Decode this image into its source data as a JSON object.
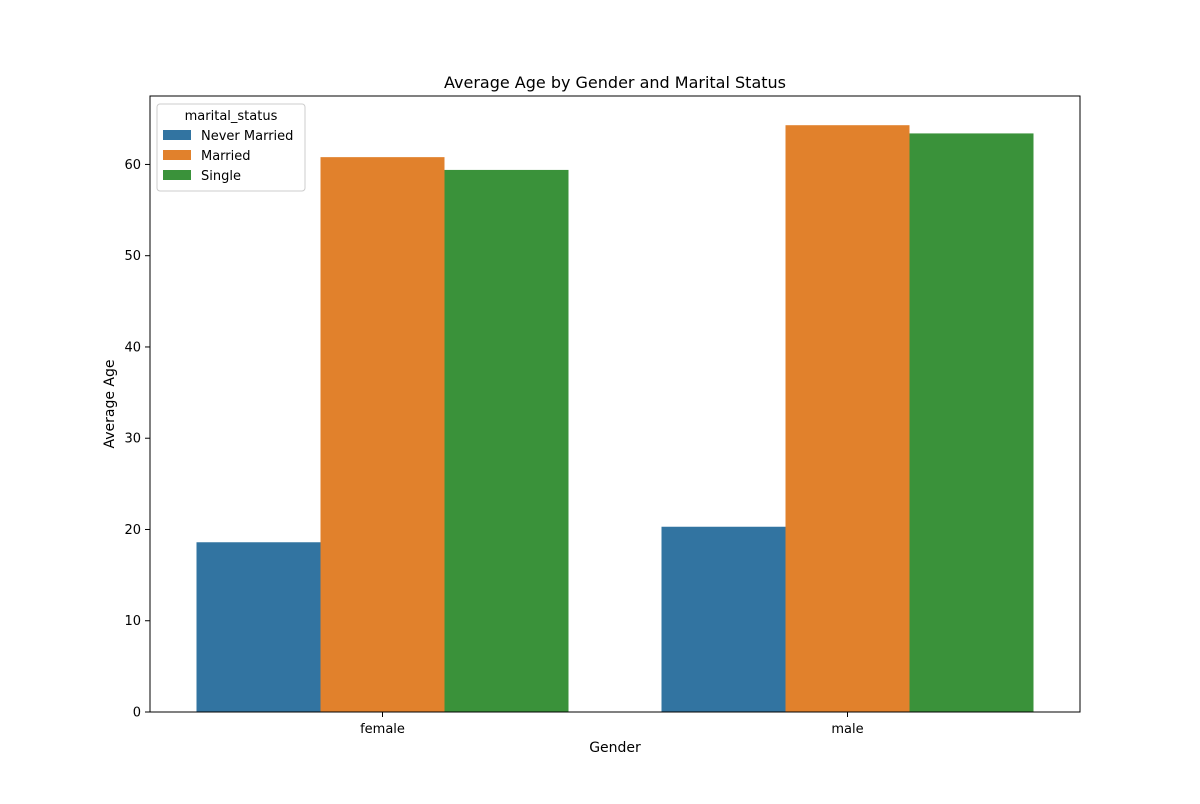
{
  "chart_data": {
    "type": "bar",
    "title": "Average Age by Gender and Marital Status",
    "xlabel": "Gender",
    "ylabel": "Average Age",
    "categories": [
      "female",
      "male"
    ],
    "series": [
      {
        "name": "Never Married",
        "color": "#3274a1",
        "values": [
          18.6,
          20.3
        ]
      },
      {
        "name": "Married",
        "color": "#e1812c",
        "values": [
          60.8,
          64.3
        ]
      },
      {
        "name": "Single",
        "color": "#3a923a",
        "values": [
          59.4,
          63.4
        ]
      }
    ],
    "ylim": [
      0,
      67.5
    ],
    "yticks": [
      0,
      10,
      20,
      30,
      40,
      50,
      60
    ],
    "legend": {
      "title": "marital_status",
      "placement": "top-left"
    },
    "grid": false
  }
}
